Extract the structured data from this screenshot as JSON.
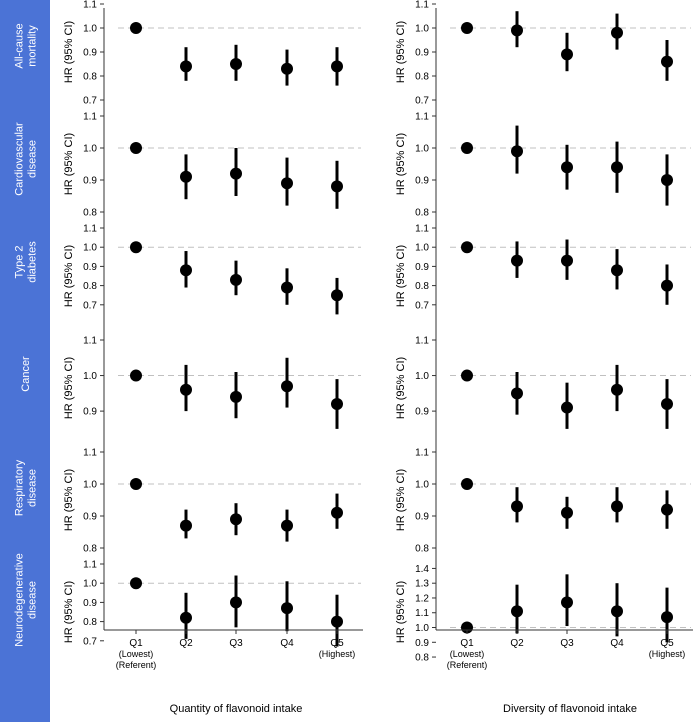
{
  "figure": {
    "row_labels": [
      [
        "All-cause",
        "mortality"
      ],
      [
        "Cardiovascular",
        "disease"
      ],
      [
        "Type 2",
        "diabetes"
      ],
      [
        "Cancer"
      ],
      [
        "Respiratory",
        "disease"
      ],
      [
        "Neurodegenerative",
        "disease"
      ]
    ],
    "y_axis_label": "HR (95% CI)",
    "x_categories": [
      [
        "Q1",
        "(Lowest)",
        "(Referent)"
      ],
      [
        "Q2"
      ],
      [
        "Q3"
      ],
      [
        "Q4"
      ],
      [
        "Q5",
        "(Highest)"
      ]
    ],
    "column_titles": [
      "Quantity of flavonoid intake",
      "Diversity of flavonoid intake"
    ],
    "colors": {
      "sidebar": "#4b73d6",
      "sidebar_text": "#ffffff",
      "marker": "#000000",
      "reference_line": "#c0c0c0",
      "axis": "#333333"
    }
  },
  "chart_data": [
    {
      "type": "scatter",
      "row": "All-cause mortality",
      "column": "Quantity of flavonoid intake",
      "categories": [
        "Q1",
        "Q2",
        "Q3",
        "Q4",
        "Q5"
      ],
      "values": [
        1.0,
        0.84,
        0.85,
        0.83,
        0.84
      ],
      "ci_low": [
        1.0,
        0.78,
        0.78,
        0.76,
        0.76
      ],
      "ci_high": [
        1.0,
        0.92,
        0.93,
        0.91,
        0.92
      ],
      "reference": 1.0,
      "ylim": [
        0.7,
        1.1
      ],
      "yticks": [
        "0.7",
        "0.8",
        "0.9",
        "1.0",
        "1.1"
      ]
    },
    {
      "type": "scatter",
      "row": "All-cause mortality",
      "column": "Diversity of flavonoid intake",
      "categories": [
        "Q1",
        "Q2",
        "Q3",
        "Q4",
        "Q5"
      ],
      "values": [
        1.0,
        0.99,
        0.89,
        0.98,
        0.86
      ],
      "ci_low": [
        1.0,
        0.92,
        0.82,
        0.91,
        0.78
      ],
      "ci_high": [
        1.0,
        1.07,
        0.98,
        1.06,
        0.95
      ],
      "reference": 1.0,
      "ylim": [
        0.7,
        1.1
      ],
      "yticks": [
        "0.7",
        "0.8",
        "0.9",
        "1.0",
        "1.1"
      ]
    },
    {
      "type": "scatter",
      "row": "Cardiovascular disease",
      "column": "Quantity of flavonoid intake",
      "categories": [
        "Q1",
        "Q2",
        "Q3",
        "Q4",
        "Q5"
      ],
      "values": [
        1.0,
        0.91,
        0.92,
        0.89,
        0.88
      ],
      "ci_low": [
        1.0,
        0.84,
        0.85,
        0.82,
        0.81
      ],
      "ci_high": [
        1.0,
        0.98,
        1.0,
        0.97,
        0.96
      ],
      "reference": 1.0,
      "ylim": [
        0.8,
        1.1
      ],
      "yticks": [
        "0.8",
        "0.9",
        "1.0",
        "1.1"
      ]
    },
    {
      "type": "scatter",
      "row": "Cardiovascular disease",
      "column": "Diversity of flavonoid intake",
      "categories": [
        "Q1",
        "Q2",
        "Q3",
        "Q4",
        "Q5"
      ],
      "values": [
        1.0,
        0.99,
        0.94,
        0.94,
        0.9
      ],
      "ci_low": [
        1.0,
        0.92,
        0.87,
        0.86,
        0.82
      ],
      "ci_high": [
        1.0,
        1.07,
        1.01,
        1.02,
        0.98
      ],
      "reference": 1.0,
      "ylim": [
        0.8,
        1.1
      ],
      "yticks": [
        "0.8",
        "0.9",
        "1.0",
        "1.1"
      ]
    },
    {
      "type": "scatter",
      "row": "Type 2 diabetes",
      "column": "Quantity of flavonoid intake",
      "categories": [
        "Q1",
        "Q2",
        "Q3",
        "Q4",
        "Q5"
      ],
      "values": [
        1.0,
        0.88,
        0.83,
        0.79,
        0.75
      ],
      "ci_low": [
        1.0,
        0.79,
        0.75,
        0.7,
        0.65
      ],
      "ci_high": [
        1.0,
        0.98,
        0.93,
        0.89,
        0.84
      ],
      "reference": 1.0,
      "ylim": [
        0.6,
        1.1
      ],
      "yticks": [
        "0.7",
        "0.8",
        "0.9",
        "1.0",
        "1.1"
      ]
    },
    {
      "type": "scatter",
      "row": "Type 2 diabetes",
      "column": "Diversity of flavonoid intake",
      "categories": [
        "Q1",
        "Q2",
        "Q3",
        "Q4",
        "Q5"
      ],
      "values": [
        1.0,
        0.93,
        0.93,
        0.88,
        0.8
      ],
      "ci_low": [
        1.0,
        0.84,
        0.83,
        0.78,
        0.7
      ],
      "ci_high": [
        1.0,
        1.03,
        1.04,
        0.99,
        0.91
      ],
      "reference": 1.0,
      "ylim": [
        0.6,
        1.1
      ],
      "yticks": [
        "0.7",
        "0.8",
        "0.9",
        "1.0",
        "1.1"
      ]
    },
    {
      "type": "scatter",
      "row": "Cancer",
      "column": "Quantity of flavonoid intake",
      "categories": [
        "Q1",
        "Q2",
        "Q3",
        "Q4",
        "Q5"
      ],
      "values": [
        1.0,
        0.96,
        0.94,
        0.97,
        0.92
      ],
      "ci_low": [
        1.0,
        0.9,
        0.88,
        0.91,
        0.85
      ],
      "ci_high": [
        1.0,
        1.03,
        1.01,
        1.05,
        0.99
      ],
      "reference": 1.0,
      "ylim": [
        0.83,
        1.1
      ],
      "yticks": [
        "0.9",
        "1.0",
        "1.1"
      ]
    },
    {
      "type": "scatter",
      "row": "Cancer",
      "column": "Diversity of flavonoid intake",
      "categories": [
        "Q1",
        "Q2",
        "Q3",
        "Q4",
        "Q5"
      ],
      "values": [
        1.0,
        0.95,
        0.91,
        0.96,
        0.92
      ],
      "ci_low": [
        1.0,
        0.89,
        0.85,
        0.9,
        0.85
      ],
      "ci_high": [
        1.0,
        1.01,
        0.98,
        1.03,
        0.99
      ],
      "reference": 1.0,
      "ylim": [
        0.83,
        1.1
      ],
      "yticks": [
        "0.9",
        "1.0",
        "1.1"
      ]
    },
    {
      "type": "scatter",
      "row": "Respiratory disease",
      "column": "Quantity of flavonoid intake",
      "categories": [
        "Q1",
        "Q2",
        "Q3",
        "Q4",
        "Q5"
      ],
      "values": [
        1.0,
        0.87,
        0.89,
        0.87,
        0.91
      ],
      "ci_low": [
        1.0,
        0.83,
        0.84,
        0.82,
        0.86
      ],
      "ci_high": [
        1.0,
        0.92,
        0.94,
        0.92,
        0.97
      ],
      "reference": 1.0,
      "ylim": [
        0.8,
        1.1
      ],
      "yticks": [
        "0.8",
        "0.9",
        "1.0",
        "1.1"
      ]
    },
    {
      "type": "scatter",
      "row": "Respiratory disease",
      "column": "Diversity of flavonoid intake",
      "categories": [
        "Q1",
        "Q2",
        "Q3",
        "Q4",
        "Q5"
      ],
      "values": [
        1.0,
        0.93,
        0.91,
        0.93,
        0.92
      ],
      "ci_low": [
        1.0,
        0.88,
        0.86,
        0.88,
        0.86
      ],
      "ci_high": [
        1.0,
        0.99,
        0.96,
        0.99,
        0.98
      ],
      "reference": 1.0,
      "ylim": [
        0.8,
        1.1
      ],
      "yticks": [
        "0.8",
        "0.9",
        "1.0",
        "1.1"
      ]
    },
    {
      "type": "scatter",
      "row": "Neurodegenerative disease",
      "column": "Quantity of flavonoid intake",
      "categories": [
        "Q1",
        "Q2",
        "Q3",
        "Q4",
        "Q5"
      ],
      "values": [
        1.0,
        0.82,
        0.9,
        0.87,
        0.8
      ],
      "ci_low": [
        1.0,
        0.71,
        0.77,
        0.75,
        0.67
      ],
      "ci_high": [
        1.0,
        0.95,
        1.04,
        1.01,
        0.94
      ],
      "reference": 1.0,
      "ylim": [
        0.6,
        1.1
      ],
      "yticks": [
        "0.7",
        "0.8",
        "0.9",
        "1.0",
        "1.1"
      ]
    },
    {
      "type": "scatter",
      "row": "Neurodegenerative disease",
      "column": "Diversity of flavonoid intake",
      "categories": [
        "Q1",
        "Q2",
        "Q3",
        "Q4",
        "Q5"
      ],
      "values": [
        1.0,
        1.11,
        1.17,
        1.11,
        1.07
      ],
      "ci_low": [
        1.0,
        0.96,
        1.01,
        0.94,
        0.9
      ],
      "ci_high": [
        1.0,
        1.29,
        1.36,
        1.3,
        1.27
      ],
      "reference": 1.0,
      "ylim": [
        0.78,
        1.43
      ],
      "yticks": [
        "0.8",
        "0.9",
        "1.0",
        "1.1",
        "1.2",
        "1.3",
        "1.4"
      ]
    }
  ]
}
